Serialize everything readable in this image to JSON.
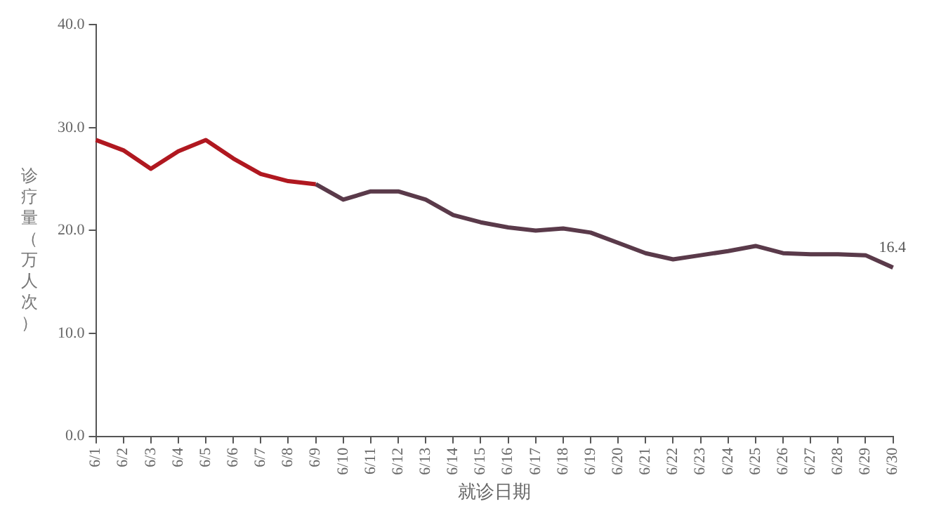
{
  "chart_data": {
    "type": "line",
    "xlabel": "就诊日期",
    "ylabel": "诊疗量（万人次）",
    "categories": [
      "6/1",
      "6/2",
      "6/3",
      "6/4",
      "6/5",
      "6/6",
      "6/7",
      "6/8",
      "6/9",
      "6/10",
      "6/11",
      "6/12",
      "6/13",
      "6/14",
      "6/15",
      "6/16",
      "6/17",
      "6/18",
      "6/19",
      "6/20",
      "6/21",
      "6/22",
      "6/23",
      "6/24",
      "6/25",
      "6/26",
      "6/27",
      "6/28",
      "6/29",
      "6/30"
    ],
    "series": [
      {
        "color": "#b01820",
        "values": [
          28.8,
          27.8,
          26.0,
          27.7,
          28.8,
          27.0,
          25.5,
          24.8,
          24.5,
          null,
          null,
          null,
          null,
          null,
          null,
          null,
          null,
          null,
          null,
          null,
          null,
          null,
          null,
          null,
          null,
          null,
          null,
          null,
          null,
          null
        ]
      },
      {
        "color": "#5a3a4a",
        "values": [
          null,
          null,
          null,
          null,
          null,
          null,
          null,
          null,
          24.5,
          23.0,
          23.8,
          23.8,
          23.0,
          21.5,
          20.8,
          20.3,
          20.0,
          20.2,
          19.8,
          18.8,
          17.8,
          17.2,
          17.6,
          18.0,
          18.5,
          17.8,
          17.7,
          17.7,
          17.6,
          16.4
        ]
      }
    ],
    "annotations": [
      {
        "text": "16.4",
        "x": "6/30",
        "y": 16.4
      }
    ],
    "ylim": [
      0,
      40
    ],
    "yticks": [
      {
        "value": 0,
        "label": "0.0"
      },
      {
        "value": 10,
        "label": "10.0"
      },
      {
        "value": 20,
        "label": "20.0"
      },
      {
        "value": 30,
        "label": "30.0"
      },
      {
        "value": 40,
        "label": "40.0"
      }
    ],
    "grid": false,
    "legend": false,
    "marker": "none",
    "line_style": "solid"
  }
}
